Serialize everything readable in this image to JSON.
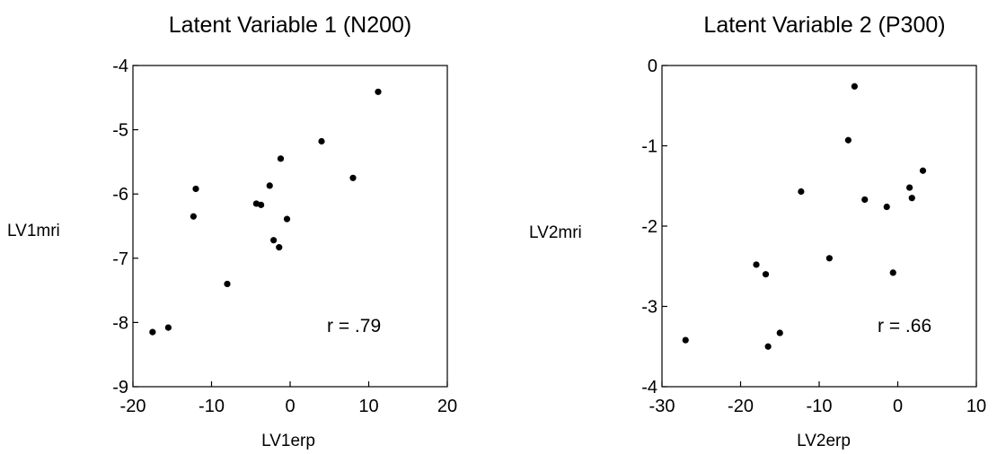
{
  "chart_data": [
    {
      "type": "scatter",
      "title": "Latent Variable 1 (N200)",
      "xlabel": "LV1erp",
      "ylabel": "LV1mri",
      "xlim": [
        -20,
        20
      ],
      "ylim": [
        -9,
        -4
      ],
      "xticks": [
        -20,
        -10,
        0,
        10,
        20
      ],
      "yticks": [
        -9,
        -8,
        -7,
        -6,
        -5,
        -4
      ],
      "xtick_labels": [
        "-20",
        "-10",
        "0",
        "10",
        "20"
      ],
      "ytick_labels": [
        "-9",
        "-8",
        "-7",
        "-6",
        "-5",
        "-4"
      ],
      "annotation": "r = .79",
      "grid": false,
      "points": [
        {
          "x": -17.5,
          "y": -8.15
        },
        {
          "x": -15.5,
          "y": -8.08
        },
        {
          "x": -12.3,
          "y": -6.35
        },
        {
          "x": -12.0,
          "y": -5.92
        },
        {
          "x": -8.0,
          "y": -7.4
        },
        {
          "x": -4.3,
          "y": -6.15
        },
        {
          "x": -3.7,
          "y": -6.17
        },
        {
          "x": -2.6,
          "y": -5.87
        },
        {
          "x": -2.1,
          "y": -6.72
        },
        {
          "x": -1.4,
          "y": -6.83
        },
        {
          "x": -1.2,
          "y": -5.45
        },
        {
          "x": -0.4,
          "y": -6.39
        },
        {
          "x": 4.0,
          "y": -5.18
        },
        {
          "x": 8.0,
          "y": -5.75
        },
        {
          "x": 11.2,
          "y": -4.41
        }
      ]
    },
    {
      "type": "scatter",
      "title": "Latent Variable 2 (P300)",
      "xlabel": "LV2erp",
      "ylabel": "LV2mri",
      "xlim": [
        -30,
        10
      ],
      "ylim": [
        -4,
        0
      ],
      "xticks": [
        -30,
        -20,
        -10,
        0,
        10
      ],
      "yticks": [
        -4,
        -3,
        -2,
        -1,
        0
      ],
      "xtick_labels": [
        "-30",
        "-20",
        "-10",
        "0",
        "10"
      ],
      "ytick_labels": [
        "-4",
        "-3",
        "-2",
        "-1",
        "0"
      ],
      "annotation": "r = .66",
      "grid": false,
      "points": [
        {
          "x": -27.0,
          "y": -3.42
        },
        {
          "x": -18.0,
          "y": -2.48
        },
        {
          "x": -16.8,
          "y": -2.6
        },
        {
          "x": -16.5,
          "y": -3.5
        },
        {
          "x": -15.0,
          "y": -3.33
        },
        {
          "x": -12.3,
          "y": -1.57
        },
        {
          "x": -8.7,
          "y": -2.4
        },
        {
          "x": -6.3,
          "y": -0.93
        },
        {
          "x": -5.5,
          "y": -0.26
        },
        {
          "x": -4.2,
          "y": -1.67
        },
        {
          "x": -1.4,
          "y": -1.76
        },
        {
          "x": -0.6,
          "y": -2.58
        },
        {
          "x": 1.5,
          "y": -1.52
        },
        {
          "x": 1.8,
          "y": -1.65
        },
        {
          "x": 3.2,
          "y": -1.31
        }
      ]
    }
  ]
}
